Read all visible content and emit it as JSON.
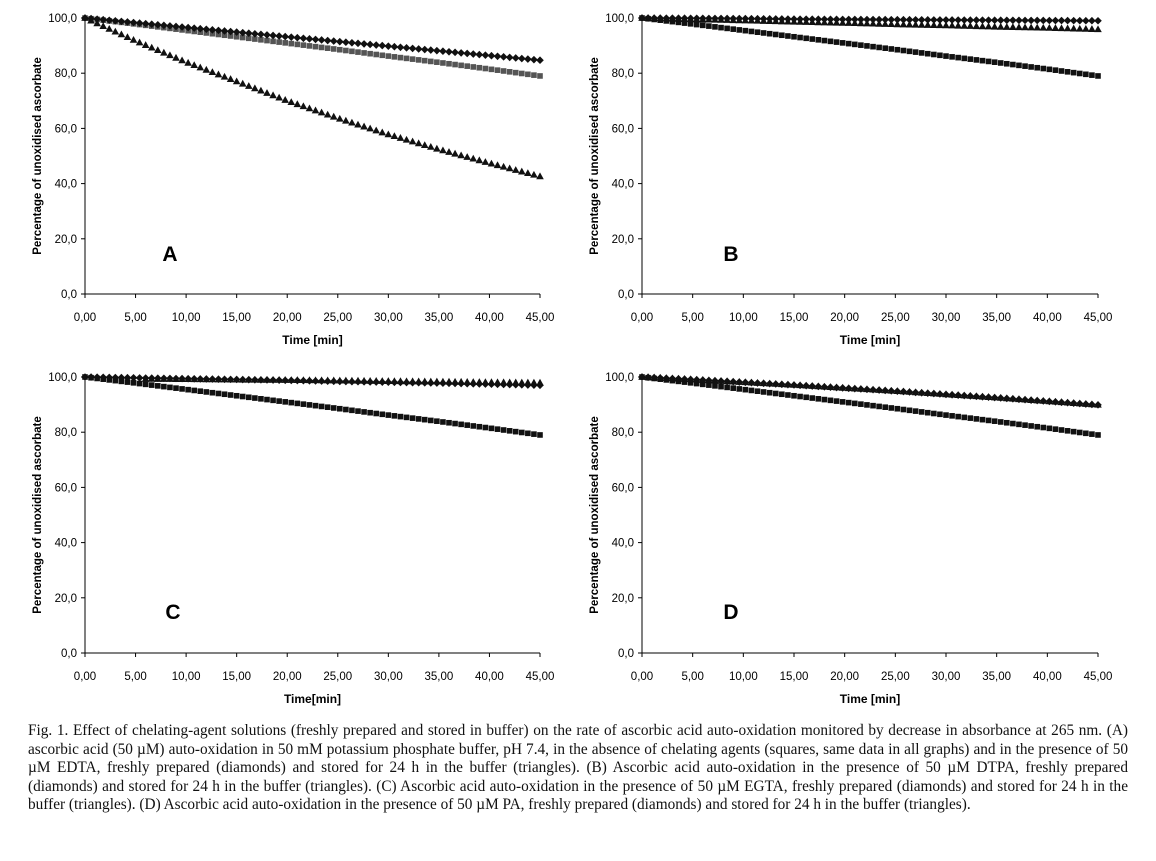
{
  "figure": {
    "caption": "Fig. 1. Effect of chelating-agent solutions (freshly prepared and stored in buffer) on the rate of ascorbic acid auto-oxidation monitored by decrease in absorbance at 265 nm. (A) ascorbic acid (50 µM) auto-oxidation in 50 mM potassium phosphate buffer, pH 7.4, in the absence of chelating agents (squares, same data in all graphs) and in the presence of 50 µM EDTA, freshly prepared (diamonds) and stored for 24 h in the buffer (triangles). (B) Ascorbic acid auto-oxidation in the presence of 50 µM DTPA, freshly prepared (diamonds) and stored for 24 h in the buffer (triangles). (C) Ascorbic acid auto-oxidation in the presence of 50 µM EGTA, freshly prepared (diamonds) and stored for 24 h in the buffer (triangles). (D) Ascorbic acid auto-oxidation in the presence of 50 µM PA, freshly prepared (diamonds) and stored for 24 h in the buffer (triangles)."
  },
  "chart_data": [
    {
      "type": "scatter",
      "panel_letter": "A",
      "xlabel": "Time [min]",
      "ylabel": "Percentage of unoxidised ascorbate",
      "xlim": [
        0,
        45
      ],
      "ylim": [
        0,
        100
      ],
      "xticks": [
        "0,00",
        "5,00",
        "10,00",
        "15,00",
        "20,00",
        "25,00",
        "30,00",
        "35,00",
        "40,00",
        "45,00"
      ],
      "yticks": [
        "0,0",
        "20,0",
        "40,0",
        "60,0",
        "80,0",
        "100,0"
      ],
      "grid": false,
      "series": [
        {
          "marker": "square",
          "color": "#555555",
          "x": [
            0,
            5,
            10,
            15,
            20,
            25,
            30,
            35,
            40,
            45
          ],
          "y": [
            100,
            97.8,
            95.5,
            93.2,
            90.9,
            88.6,
            86.2,
            83.9,
            81.5,
            79
          ]
        },
        {
          "marker": "diamond",
          "color": "#111111",
          "x": [
            0,
            5,
            10,
            15,
            20,
            25,
            30,
            35,
            40,
            45
          ],
          "y": [
            100,
            98.3,
            96.6,
            94.9,
            93.2,
            91.5,
            89.8,
            88.1,
            86.4,
            84.7
          ]
        },
        {
          "marker": "triangle",
          "color": "#111111",
          "x": [
            0,
            5,
            10,
            15,
            20,
            25,
            30,
            35,
            40,
            45
          ],
          "y": [
            100,
            91.7,
            84,
            77,
            70,
            63.7,
            57.8,
            52.4,
            47.4,
            42.6
          ]
        }
      ]
    },
    {
      "type": "scatter",
      "panel_letter": "B",
      "xlabel": "Time [min]",
      "ylabel": "Percentage of unoxidised ascorbate",
      "xlim": [
        0,
        45
      ],
      "ylim": [
        0,
        100
      ],
      "xticks": [
        "0,00",
        "5,00",
        "10,00",
        "15,00",
        "20,00",
        "25,00",
        "30,00",
        "35,00",
        "40,00",
        "45,00"
      ],
      "yticks": [
        "0,0",
        "20,0",
        "40,0",
        "60,0",
        "80,0",
        "100,0"
      ],
      "grid": false,
      "series": [
        {
          "marker": "square",
          "color": "#111111",
          "x": [
            0,
            5,
            10,
            15,
            20,
            25,
            30,
            35,
            40,
            45
          ],
          "y": [
            100,
            97.8,
            95.5,
            93.2,
            90.9,
            88.6,
            86.2,
            83.9,
            81.5,
            79
          ]
        },
        {
          "marker": "diamond",
          "color": "#111111",
          "x": [
            0,
            5,
            10,
            15,
            20,
            25,
            30,
            35,
            40,
            45
          ],
          "y": [
            100,
            99.9,
            99.8,
            99.6,
            99.5,
            99.4,
            99.3,
            99.2,
            99.1,
            99
          ]
        },
        {
          "marker": "triangle",
          "color": "#111111",
          "x": [
            0,
            5,
            10,
            15,
            20,
            25,
            30,
            35,
            40,
            45
          ],
          "y": [
            100,
            99.5,
            99.1,
            98.6,
            98.2,
            97.7,
            97.3,
            96.8,
            96.4,
            95.9
          ]
        }
      ]
    },
    {
      "type": "scatter",
      "panel_letter": "C",
      "xlabel": "Time[min]",
      "ylabel": "Percentage of unoxidised ascorbate",
      "xlim": [
        0,
        45
      ],
      "ylim": [
        0,
        100
      ],
      "xticks": [
        "0,00",
        "5,00",
        "10,00",
        "15,00",
        "20,00",
        "25,00",
        "30,00",
        "35,00",
        "40,00",
        "45,00"
      ],
      "yticks": [
        "0,0",
        "20,0",
        "40,0",
        "60,0",
        "80,0",
        "100,0"
      ],
      "grid": false,
      "series": [
        {
          "marker": "square",
          "color": "#111111",
          "x": [
            0,
            5,
            10,
            15,
            20,
            25,
            30,
            35,
            40,
            45
          ],
          "y": [
            100,
            97.8,
            95.5,
            93.2,
            90.9,
            88.6,
            86.2,
            83.9,
            81.5,
            79
          ]
        },
        {
          "marker": "diamond",
          "color": "#111111",
          "x": [
            0,
            5,
            10,
            15,
            20,
            25,
            30,
            35,
            40,
            45
          ],
          "y": [
            100,
            99.7,
            99.4,
            99.1,
            98.8,
            98.4,
            98.1,
            97.8,
            97.4,
            97
          ]
        },
        {
          "marker": "triangle",
          "color": "#111111",
          "x": [
            6,
            10,
            15,
            20,
            25,
            30,
            35,
            40,
            45
          ],
          "y": [
            99.3,
            99.2,
            99,
            98.9,
            98.7,
            98.5,
            98.3,
            98.1,
            97.9
          ]
        }
      ]
    },
    {
      "type": "scatter",
      "panel_letter": "D",
      "xlabel": "Time [min]",
      "ylabel": "Percentage of unoxidised ascorbate",
      "xlim": [
        0,
        45
      ],
      "ylim": [
        0,
        100
      ],
      "xticks": [
        "0,00",
        "5,00",
        "10,00",
        "15,00",
        "20,00",
        "25,00",
        "30,00",
        "35,00",
        "40,00",
        "45,00"
      ],
      "yticks": [
        "0,0",
        "20,0",
        "40,0",
        "60,0",
        "80,0",
        "100,0"
      ],
      "grid": false,
      "series": [
        {
          "marker": "square",
          "color": "#111111",
          "x": [
            0,
            5,
            10,
            15,
            20,
            25,
            30,
            35,
            40,
            45
          ],
          "y": [
            100,
            97.8,
            95.5,
            93.2,
            90.9,
            88.6,
            86.2,
            83.9,
            81.5,
            79
          ]
        },
        {
          "marker": "diamond",
          "color": "#111111",
          "x": [
            0,
            5,
            10,
            15,
            20,
            25,
            30,
            35,
            40,
            45
          ],
          "y": [
            100,
            99.1,
            98.1,
            97.1,
            96,
            94.9,
            93.7,
            92.5,
            91.2,
            89.9
          ]
        },
        {
          "marker": "triangle",
          "color": "#111111",
          "x": [
            0,
            5,
            10,
            15,
            20,
            25,
            30,
            35,
            40,
            45
          ],
          "y": [
            100,
            99.1,
            98.1,
            97.1,
            96,
            94.9,
            93.7,
            92.5,
            91.2,
            89.9
          ]
        }
      ]
    }
  ]
}
